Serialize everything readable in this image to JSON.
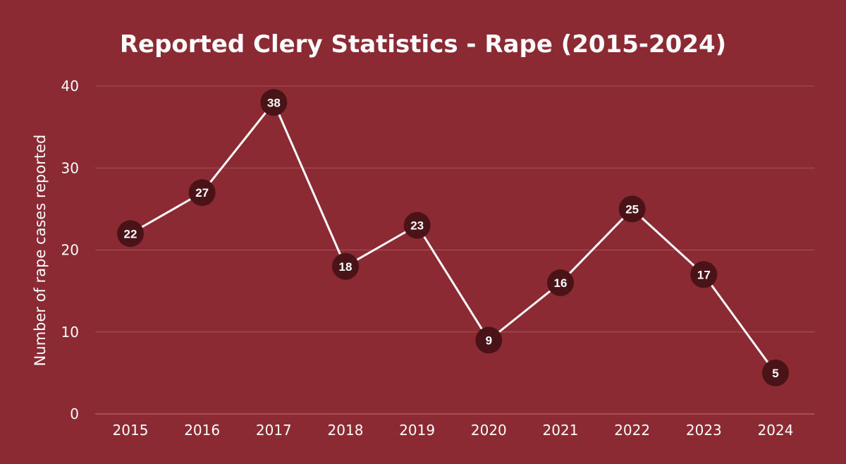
{
  "chart_data": {
    "type": "line",
    "title": "Reported Clery Statistics - Rape (2015-2024)",
    "xlabel": "",
    "ylabel": "Number of rape cases reported",
    "ylim": [
      0,
      40
    ],
    "yticks": [
      0,
      10,
      20,
      30,
      40
    ],
    "grid": true,
    "legend": "none",
    "categories": [
      "2015",
      "2016",
      "2017",
      "2018",
      "2019",
      "2020",
      "2021",
      "2022",
      "2023",
      "2024"
    ],
    "series": [
      {
        "values": [
          22,
          27,
          38,
          18,
          23,
          9,
          16,
          25,
          17,
          5
        ]
      }
    ],
    "colors": {
      "background": "#8b2a33",
      "line": "#ffffff",
      "marker": "#4a1318",
      "text": "#ffffff"
    }
  }
}
